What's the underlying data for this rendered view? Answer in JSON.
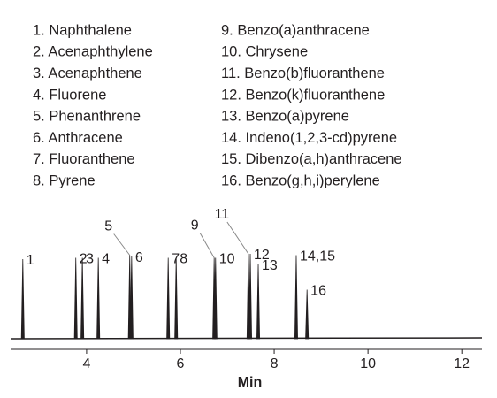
{
  "compounds": [
    "1. Naphthalene",
    "2. Acenaphthylene",
    "3. Acenaphthene",
    "4. Fluorene",
    "5. Phenanthrene",
    "6. Anthracene",
    "7. Fluoranthene",
    "8. Pyrene",
    "9. Benzo(a)anthracene",
    "10. Chrysene",
    "11. Benzo(b)fluoranthene",
    "12. Benzo(k)fluoranthene",
    "13. Benzo(a)pyrene",
    "14. Indeno(1,2,3-cd)pyrene",
    "15. Dibenzo(a,h)anthracene",
    "16. Benzo(g,h,i)perylene"
  ],
  "chart_data": {
    "type": "chromatogram",
    "xlabel": "Min",
    "xlim": [
      2.38,
      12.43
    ],
    "xticks": [
      4,
      6,
      8,
      10,
      12
    ],
    "ylim": [
      0,
      100
    ],
    "labels": [
      "1",
      "2",
      "3",
      "4",
      "5",
      "6",
      "7",
      "8",
      "9",
      "10",
      "11",
      "12",
      "13",
      "14,15",
      "16"
    ],
    "x": [
      2.64,
      3.77,
      3.91,
      4.25,
      4.92,
      4.96,
      5.74,
      5.91,
      6.72,
      6.75,
      7.45,
      7.49,
      7.66,
      8.47,
      8.7
    ],
    "values": [
      60,
      61,
      61,
      61,
      63,
      62,
      61,
      61,
      61,
      61,
      64,
      64,
      56,
      63,
      37
    ],
    "color": "#231f20"
  }
}
